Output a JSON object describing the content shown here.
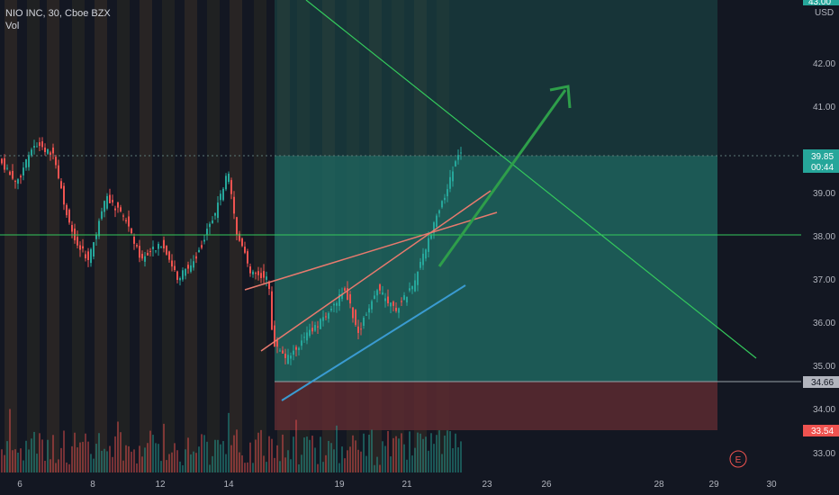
{
  "header": {
    "symbol_line": "NIO INC, 30, Cboe BZX",
    "vol_label": "Vol"
  },
  "price_axis": {
    "currency": "USD",
    "labels": [
      "42.00",
      "41.00",
      "40.00",
      "39.00",
      "38.00",
      "37.00",
      "36.00",
      "35.00",
      "34.00",
      "33.00"
    ],
    "top_partial": "43.00"
  },
  "time_axis": {
    "labels": [
      "6",
      "8",
      "12",
      "14",
      "19",
      "21",
      "23",
      "26",
      "28",
      "29",
      "30"
    ]
  },
  "tags": {
    "current_price": "39.85",
    "countdown": "00:44",
    "stop_price": "34.66",
    "lower_price": "33.54",
    "top_tag": "43.00"
  },
  "earnings_marker": "E",
  "colors": {
    "background": "#131722",
    "up": "#26a69a",
    "down": "#ef5350",
    "target_zone": "#1e5a55",
    "stop_zone": "#5a2a2e",
    "trend_green": "#34c95c",
    "channel_red": "#e87a6e",
    "channel_blue": "#3a9bd1",
    "arrow": "#2e9e4a"
  }
}
